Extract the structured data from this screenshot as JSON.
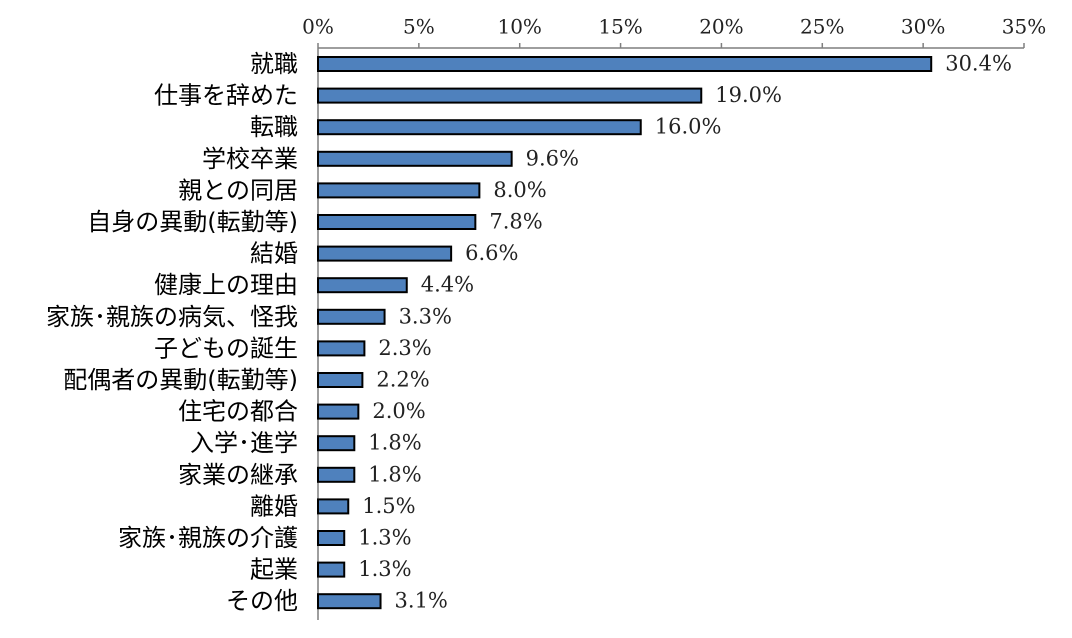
{
  "chart_data": {
    "type": "bar",
    "orientation": "horizontal",
    "title": "",
    "xlabel": "",
    "ylabel": "",
    "xlim": [
      0,
      35
    ],
    "x_ticks": [
      0,
      5,
      10,
      15,
      20,
      25,
      30,
      35
    ],
    "x_tick_labels": [
      "0%",
      "5%",
      "10%",
      "15%",
      "20%",
      "25%",
      "30%",
      "35%"
    ],
    "x_axis_position": "top",
    "grid": false,
    "legend": "none",
    "bar_color": "#4f81bd",
    "bar_edge_color": "#000000",
    "categories": [
      "就職",
      "仕事を辞めた",
      "転職",
      "学校卒業",
      "親との同居",
      "自身の異動(転勤等)",
      "結婚",
      "健康上の理由",
      "家族･親族の病気、怪我",
      "子どもの誕生",
      "配偶者の異動(転勤等)",
      "住宅の都合",
      "入学･進学",
      "家業の継承",
      "離婚",
      "家族･親族の介護",
      "起業",
      "その他"
    ],
    "values": [
      30.4,
      19.0,
      16.0,
      9.6,
      8.0,
      7.8,
      6.6,
      4.4,
      3.3,
      2.3,
      2.2,
      2.0,
      1.8,
      1.8,
      1.5,
      1.3,
      1.3,
      3.1
    ],
    "value_labels": [
      "30.4%",
      "19.0%",
      "16.0%",
      "9.6%",
      "8.0%",
      "7.8%",
      "6.6%",
      "4.4%",
      "3.3%",
      "2.3%",
      "2.2%",
      "2.0%",
      "1.8%",
      "1.8%",
      "1.5%",
      "1.3%",
      "1.3%",
      "3.1%"
    ]
  }
}
